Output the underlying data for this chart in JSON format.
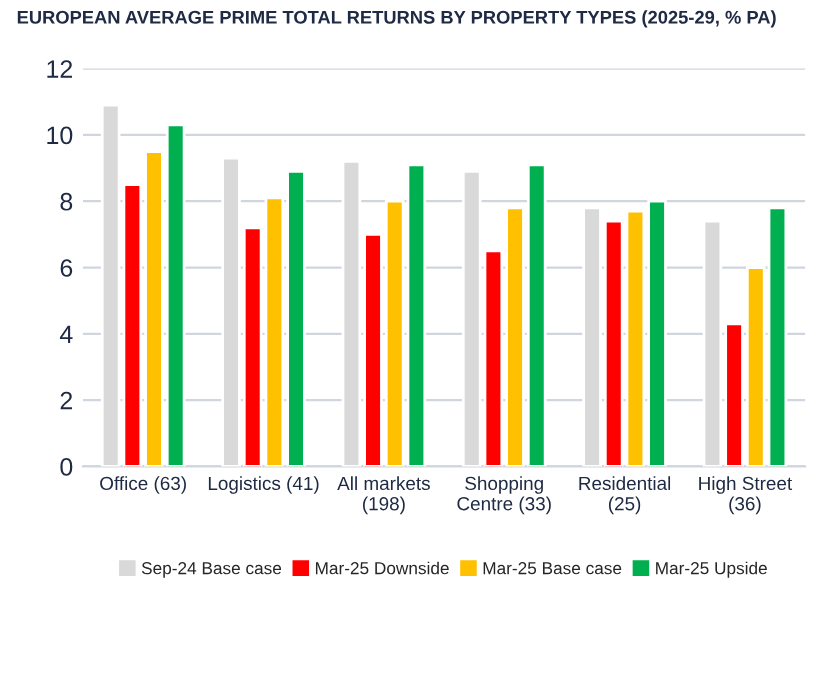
{
  "chart_data": {
    "type": "bar",
    "title": "EUROPEAN AVERAGE PRIME TOTAL RETURNS BY PROPERTY TYPES (2025-29, % PA)",
    "categories": [
      "Office (63)",
      "Logistics (41)",
      "All markets\n(198)",
      "Shopping\nCentre (33)",
      "Residential\n(25)",
      "High Street\n(36)"
    ],
    "series": [
      {
        "name": "Sep-24 Base case",
        "color": "#d9d9d9",
        "values": [
          10.9,
          9.3,
          9.2,
          8.9,
          7.8,
          7.4
        ]
      },
      {
        "name": "Mar-25 Downside",
        "color": "#ff0000",
        "values": [
          8.5,
          7.2,
          7.0,
          6.5,
          7.4,
          4.3
        ]
      },
      {
        "name": "Mar-25 Base case",
        "color": "#ffc000",
        "values": [
          9.5,
          8.1,
          8.0,
          7.8,
          7.7,
          6.0
        ]
      },
      {
        "name": "Mar-25 Upside",
        "color": "#00b050",
        "values": [
          10.3,
          8.9,
          9.1,
          9.1,
          8.0,
          7.8
        ]
      }
    ],
    "ylim": [
      0,
      12
    ],
    "yticks": [
      0,
      2,
      4,
      6,
      8,
      10,
      12
    ],
    "grid": "y",
    "legend": "bottom"
  }
}
